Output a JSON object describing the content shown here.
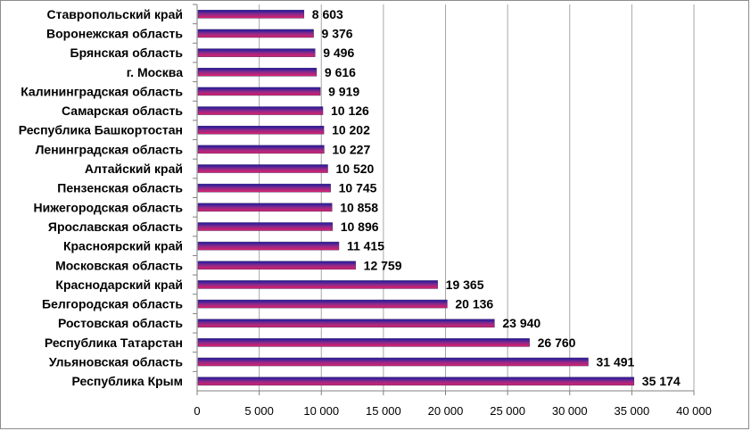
{
  "chart_data": {
    "type": "bar",
    "orientation": "horizontal",
    "categories": [
      "Ставропольский край",
      "Воронежская область",
      "Брянская область",
      "г. Москва",
      "Калининградская область",
      "Самарская область",
      "Республика Башкортостан",
      "Ленинградская область",
      "Алтайский край",
      "Пензенская область",
      "Нижегородская область",
      "Ярославская область",
      "Красноярский край",
      "Московская область",
      "Краснодарский край",
      "Белгородская область",
      "Ростовская область",
      "Республика Татарстан",
      "Ульяновская область",
      "Республика Крым"
    ],
    "values": [
      8603,
      9376,
      9496,
      9616,
      9919,
      10126,
      10202,
      10227,
      10520,
      10745,
      10858,
      10896,
      11415,
      12759,
      19365,
      20136,
      23940,
      26760,
      31491,
      35174
    ],
    "value_labels": [
      "8 603",
      "9 376",
      "9 496",
      "9 616",
      "9 919",
      "10 126",
      "10 202",
      "10 227",
      "10 520",
      "10 745",
      "10 858",
      "10 896",
      "11 415",
      "12 759",
      "19 365",
      "20 136",
      "23 940",
      "26 760",
      "31 491",
      "35 174"
    ],
    "xlim": [
      0,
      40000
    ],
    "x_ticks": [
      0,
      5000,
      10000,
      15000,
      20000,
      25000,
      30000,
      35000,
      40000
    ],
    "x_tick_labels": [
      "0",
      "5 000",
      "10 000",
      "15 000",
      "20 000",
      "25 000",
      "30 000",
      "35 000",
      "40 000"
    ],
    "grid": "vertical",
    "legend": "none",
    "title": "",
    "xlabel": "",
    "ylabel": "",
    "colors": {
      "bar_top": "#1a1aa0",
      "bar_middle": "#8a2a8a",
      "bar_bottom": "#e0206a",
      "gridline": "#a6a6a6",
      "axis": "#808080",
      "frame": "#8c8c8c"
    }
  }
}
